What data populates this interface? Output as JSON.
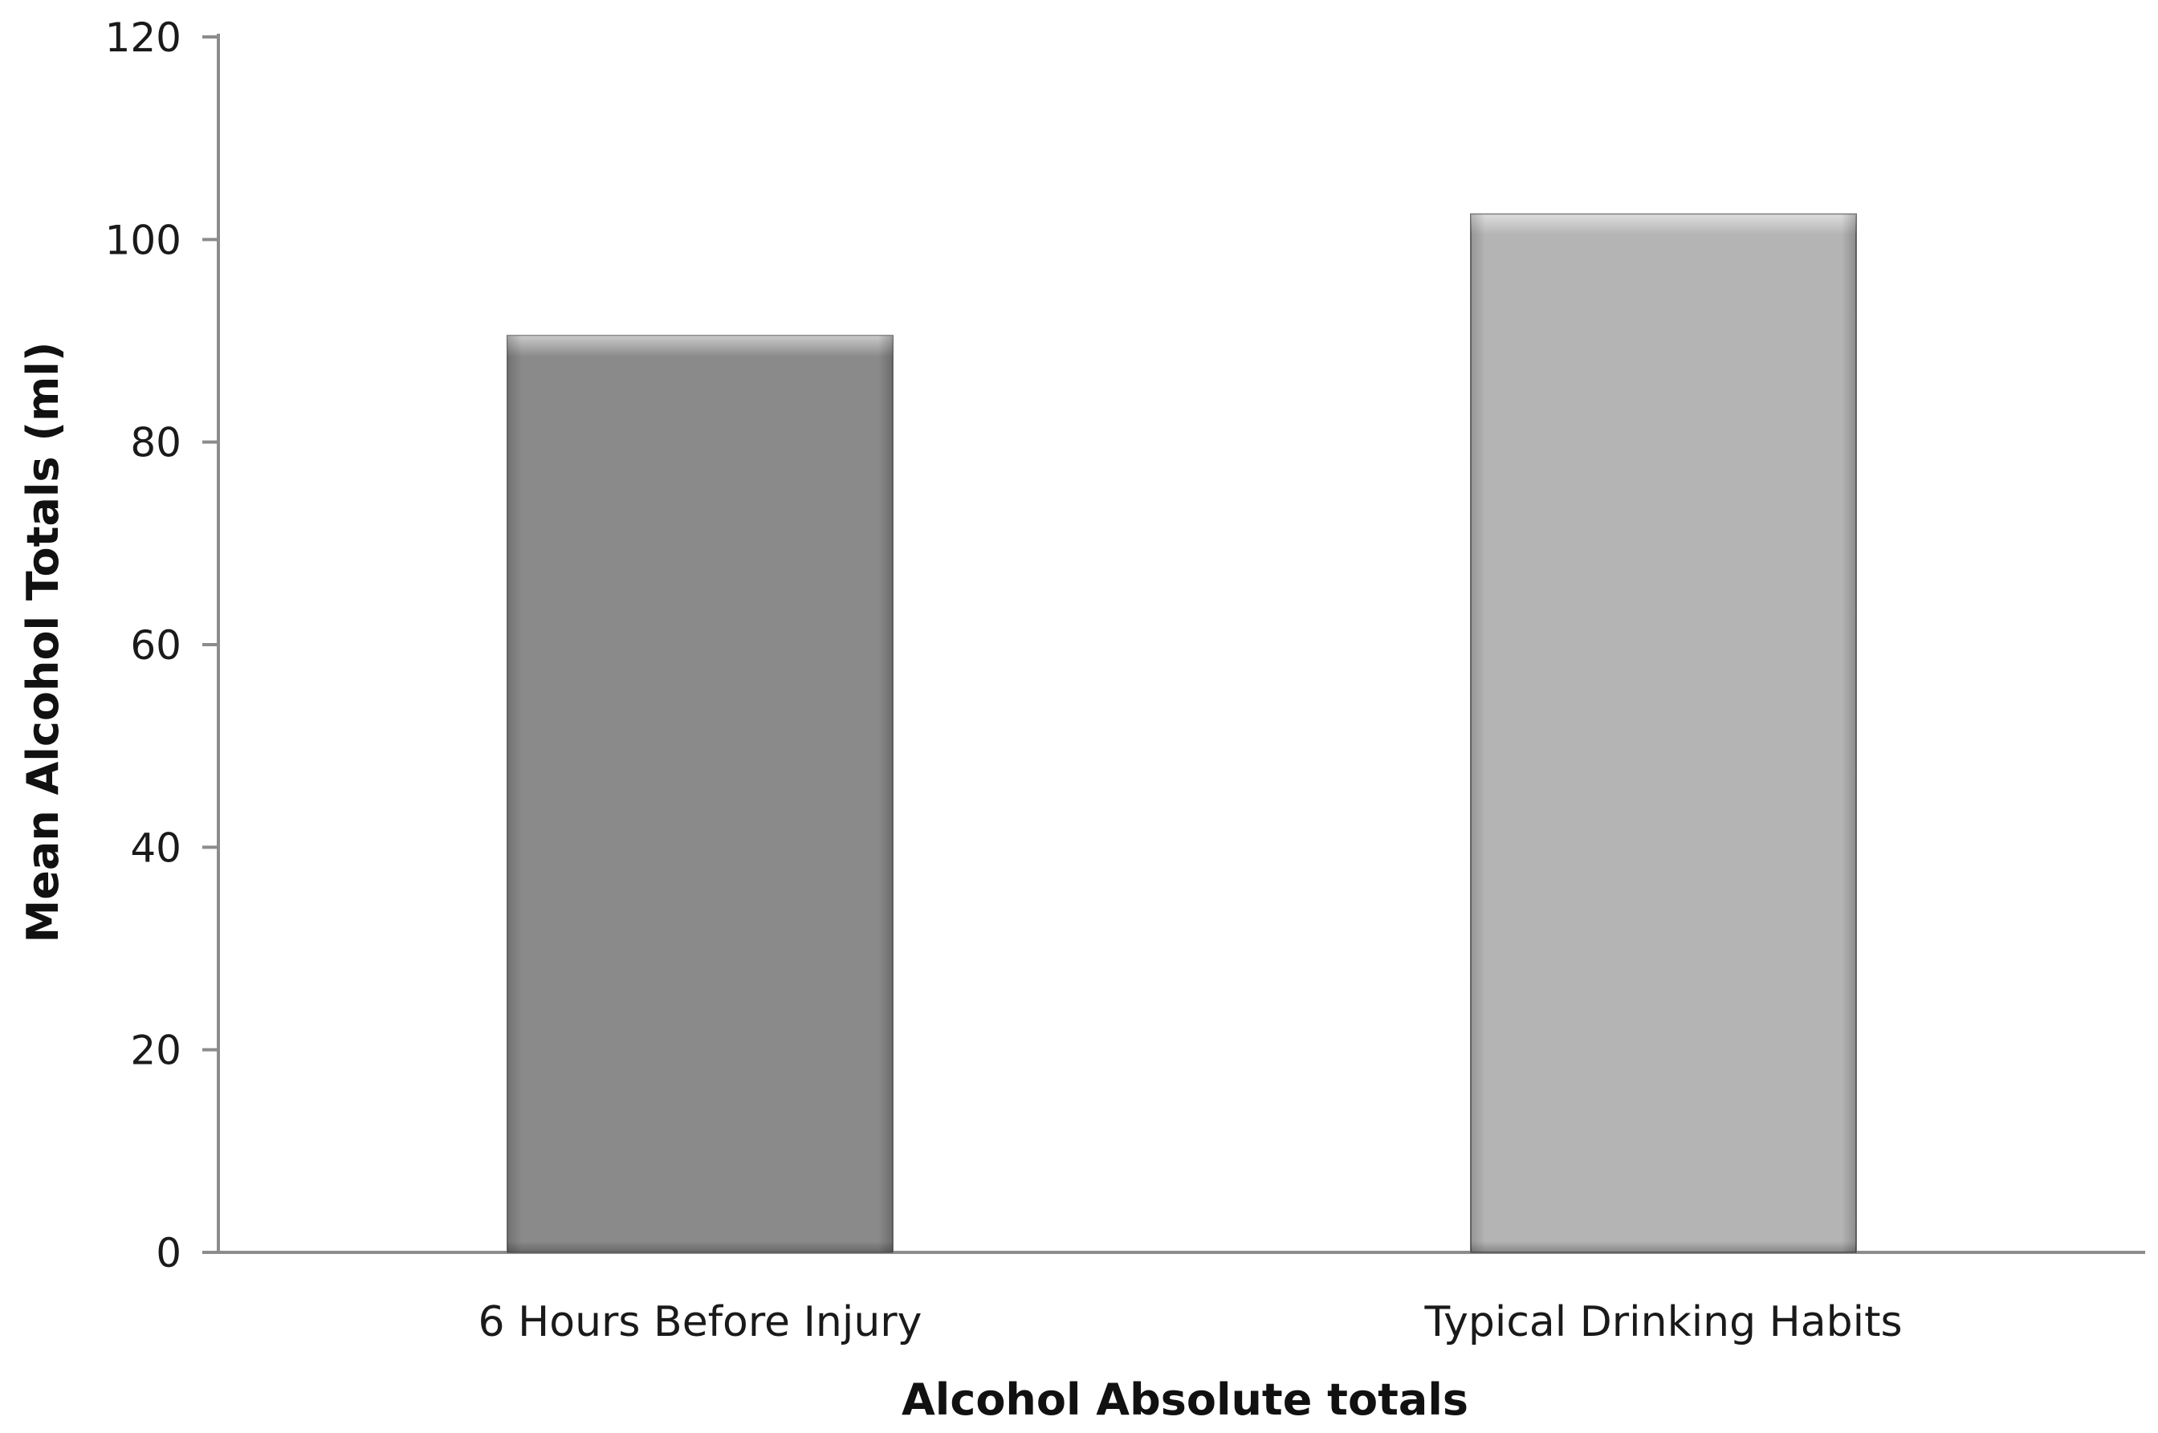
{
  "chart_data": {
    "type": "bar",
    "categories": [
      "6 Hours Before Injury",
      "Typical Drinking Habits"
    ],
    "values": [
      90.5,
      102.5
    ],
    "xlabel": "Alcohol Absolute totals",
    "ylabel": "Mean Alcohol Totals (ml)",
    "ylim": [
      0,
      120
    ],
    "yticks": [
      0,
      20,
      40,
      60,
      80,
      100,
      120
    ],
    "grid": false,
    "legend": "none",
    "colors": [
      "#8a8a8a",
      "#b4b4b4"
    ]
  }
}
